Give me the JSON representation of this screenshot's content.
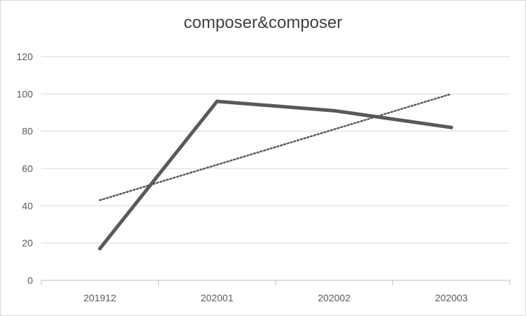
{
  "chart_data": {
    "type": "line",
    "title": "composer&composer",
    "xlabel": "",
    "ylabel": "",
    "categories": [
      "201912",
      "202001",
      "202002",
      "202003"
    ],
    "series": [
      {
        "values": [
          17,
          96,
          91,
          82
        ],
        "color": "#595959",
        "style": "solid"
      }
    ],
    "trendline": {
      "values": [
        43,
        62,
        81,
        100
      ],
      "color": "#595959",
      "style": "dotted"
    },
    "ylim": [
      0,
      120
    ],
    "yticks": [
      0,
      20,
      40,
      60,
      80,
      100,
      120
    ],
    "grid": true,
    "legend": "none"
  }
}
